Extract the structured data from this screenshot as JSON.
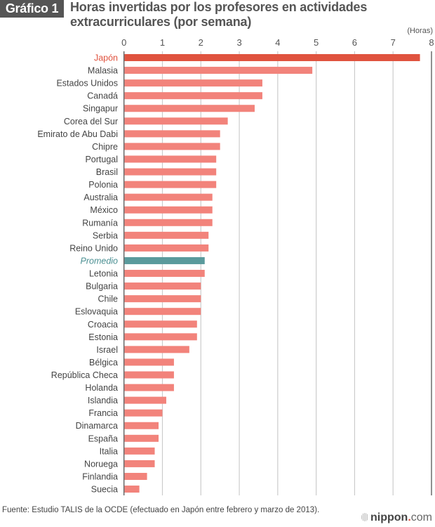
{
  "header": {
    "badge": "Gráfico 1",
    "title": "Horas invertidas por los profesores en actividades extracurriculares (por semana)"
  },
  "footer": {
    "source": "Fuente: Estudio TALIS de la OCDE (efectuado en Japón entre febrero y marzo de 2013).",
    "logo_main": "nippon",
    "logo_dot": ".",
    "logo_tld": "com"
  },
  "colors": {
    "highlight": "#e0533f",
    "bar": "#f2837b",
    "average": "#5a9a9c",
    "label": "#444444",
    "highlight_label": "#e0533f",
    "average_label": "#4a8f92",
    "grid": "#cccccc",
    "axis": "#555555"
  },
  "chart_data": {
    "type": "bar",
    "orientation": "horizontal",
    "title": "Horas invertidas por los profesores en actividades extracurriculares (por semana)",
    "xlabel": "",
    "unit_label": "(Horas)",
    "ylabel": "",
    "xlim": [
      0,
      8
    ],
    "xticks": [
      "0",
      "1",
      "2",
      "3",
      "4",
      "5",
      "6",
      "7",
      "8"
    ],
    "axis_position": "top",
    "grid": true,
    "categories": [
      "Japón",
      "Malasia",
      "Estados Unidos",
      "Canadá",
      "Singapur",
      "Corea del Sur",
      "Emirato de Abu Dabi",
      "Chipre",
      "Portugal",
      "Brasil",
      "Polonia",
      "Australia",
      "México",
      "Rumanía",
      "Serbia",
      "Reino Unido",
      "Promedio",
      "Letonia",
      "Bulgaria",
      "Chile",
      "Eslovaquia",
      "Croacia",
      "Estonia",
      "Israel",
      "Bélgica",
      "República Checa",
      "Holanda",
      "Islandia",
      "Francia",
      "Dinamarca",
      "España",
      "Italia",
      "Noruega",
      "Finlandia",
      "Suecia"
    ],
    "values": [
      7.7,
      4.9,
      3.6,
      3.6,
      3.4,
      2.7,
      2.5,
      2.5,
      2.4,
      2.4,
      2.4,
      2.3,
      2.3,
      2.3,
      2.2,
      2.2,
      2.1,
      2.1,
      2.0,
      2.0,
      2.0,
      1.9,
      1.9,
      1.7,
      1.3,
      1.3,
      1.3,
      1.1,
      1.0,
      0.9,
      0.9,
      0.8,
      0.8,
      0.6,
      0.4
    ],
    "highlight": "Japón",
    "average": "Promedio"
  }
}
